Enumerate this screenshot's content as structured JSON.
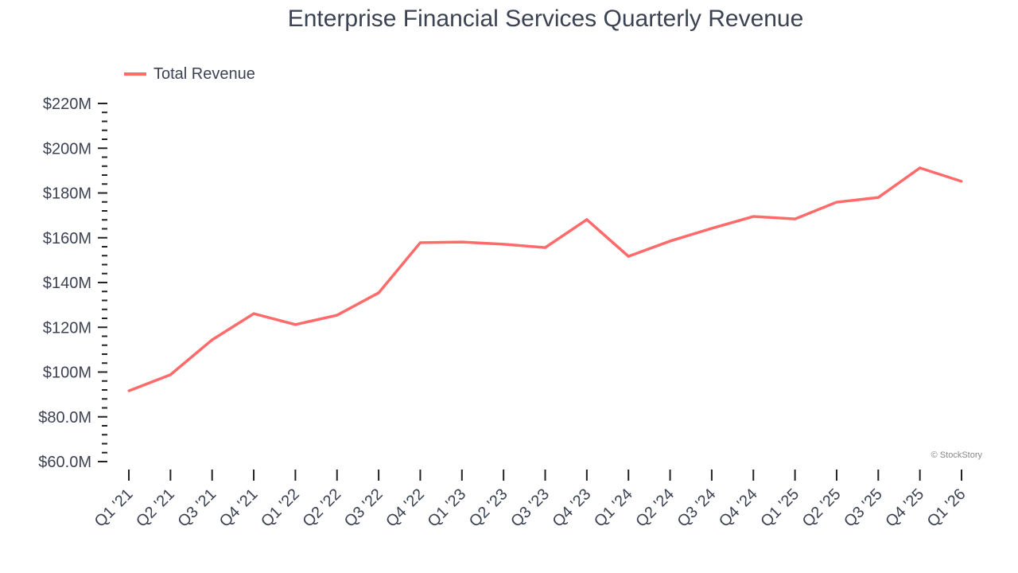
{
  "chart_data": {
    "type": "line",
    "title": "Enterprise Financial Services Quarterly Revenue",
    "xlabel": "",
    "ylabel": "",
    "ylim": [
      60,
      220
    ],
    "y_ticks": [
      60,
      80,
      100,
      120,
      140,
      160,
      180,
      200,
      220
    ],
    "y_tick_labels": [
      "$60.0M",
      "$80.0M",
      "$100M",
      "$120M",
      "$140M",
      "$160M",
      "$180M",
      "$200M",
      "$220M"
    ],
    "grid": false,
    "legend_position": "top-left",
    "categories": [
      "Q1 '21",
      "Q2 '21",
      "Q3 '21",
      "Q4 '21",
      "Q1 '22",
      "Q2 '22",
      "Q3 '22",
      "Q4 '22",
      "Q1 '23",
      "Q2 '23",
      "Q3 '23",
      "Q4 '23",
      "Q1 '24",
      "Q2 '24",
      "Q3 '24",
      "Q4 '24",
      "Q1 '25",
      "Q2 '25",
      "Q3 '25",
      "Q4 '25",
      "Q1 '26"
    ],
    "series": [
      {
        "name": "Total Revenue",
        "color": "#ff6b6b",
        "values": [
          91.6,
          98.8,
          114.4,
          126.1,
          121.2,
          125.4,
          135.4,
          157.8,
          158.1,
          157.1,
          155.6,
          168.1,
          151.7,
          158.5,
          164.2,
          169.5,
          168.4,
          175.9,
          178.0,
          191.2,
          185.2
        ]
      }
    ],
    "credit": "© StockStory"
  }
}
